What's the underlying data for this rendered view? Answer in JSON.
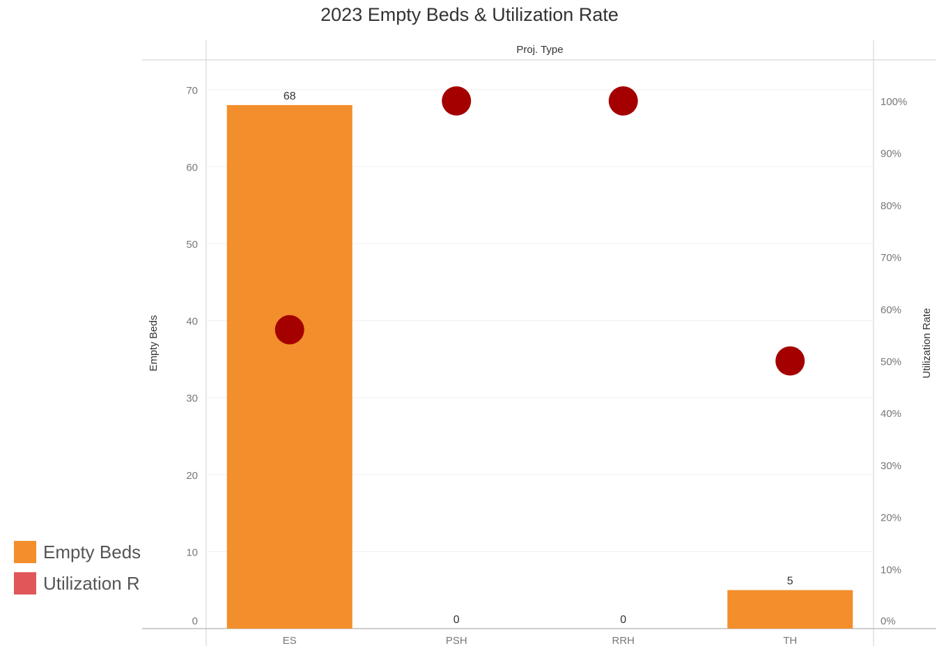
{
  "chart_data": {
    "type": "bar",
    "title": "2023 Empty Beds & Utilization Rate",
    "column_header": "Proj. Type",
    "categories": [
      "ES",
      "PSH",
      "RRH",
      "TH"
    ],
    "ylabel": "Empty Beds",
    "y2label": "Utilization Rate",
    "ylim": [
      0,
      72
    ],
    "yticks": [
      0,
      10,
      20,
      30,
      40,
      50,
      60,
      70
    ],
    "y2lim": [
      0,
      1.05
    ],
    "y2ticks": [
      0,
      0.1,
      0.2,
      0.3,
      0.4,
      0.5,
      0.6,
      0.7,
      0.8,
      0.9,
      1.0
    ],
    "y2ticklabels": [
      "0%",
      "10%",
      "20%",
      "30%",
      "40%",
      "50%",
      "60%",
      "70%",
      "80%",
      "90%",
      "100%"
    ],
    "series": [
      {
        "name": "Empty Beds",
        "kind": "bar",
        "axis": "left",
        "color": "#F28E2B",
        "values": [
          68,
          0,
          0,
          5
        ],
        "data_labels": [
          "68",
          "0",
          "0",
          "5"
        ]
      },
      {
        "name": "Utilization Rate",
        "kind": "point",
        "axis": "right",
        "color": "#A50000",
        "values": [
          0.56,
          1.0,
          1.0,
          0.5
        ]
      }
    ],
    "grid": true,
    "legend": "bottom-left"
  },
  "legend": {
    "items": [
      {
        "label": "Empty Beds",
        "color": "#F28E2B"
      },
      {
        "label": "Utilization Rate",
        "color": "#E15759"
      }
    ]
  }
}
